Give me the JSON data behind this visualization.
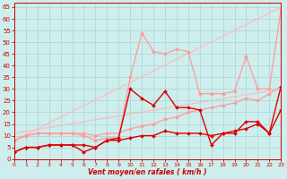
{
  "xlabel": "Vent moyen/en rafales ( km/h )",
  "bg_color": "#ceeeed",
  "grid_color": "#aad4d4",
  "yticks": [
    0,
    5,
    10,
    15,
    20,
    25,
    30,
    35,
    40,
    45,
    50,
    55,
    60,
    65
  ],
  "xticks": [
    0,
    1,
    2,
    3,
    4,
    5,
    6,
    7,
    8,
    9,
    10,
    11,
    12,
    13,
    14,
    15,
    16,
    17,
    18,
    19,
    20,
    21,
    22,
    23
  ],
  "xlim": [
    0,
    23
  ],
  "ylim": [
    0,
    67
  ],
  "lines": [
    {
      "x": [
        0,
        23
      ],
      "y": [
        8,
        65
      ],
      "color": "#ffbbbb",
      "lw": 0.9,
      "marker": null,
      "ms": 0,
      "zorder": 1
    },
    {
      "x": [
        0,
        23
      ],
      "y": [
        11,
        30
      ],
      "color": "#ffbbbb",
      "lw": 0.9,
      "marker": null,
      "ms": 0,
      "zorder": 1
    },
    {
      "x": [
        0,
        1,
        2,
        3,
        4,
        5,
        6,
        7,
        8,
        9,
        10,
        11,
        12,
        13,
        14,
        15,
        16,
        17,
        18,
        19,
        20,
        21,
        22,
        23
      ],
      "y": [
        8,
        10,
        11,
        11,
        11,
        11,
        10,
        8,
        9,
        9,
        35,
        54,
        46,
        45,
        47,
        46,
        28,
        28,
        28,
        29,
        44,
        30,
        30,
        64
      ],
      "color": "#ff9999",
      "lw": 0.9,
      "marker": "D",
      "ms": 2.0,
      "zorder": 2
    },
    {
      "x": [
        0,
        1,
        2,
        3,
        4,
        5,
        6,
        7,
        8,
        9,
        10,
        11,
        12,
        13,
        14,
        15,
        16,
        17,
        18,
        19,
        20,
        21,
        22,
        23
      ],
      "y": [
        8,
        10,
        11,
        11,
        11,
        11,
        11,
        10,
        11,
        11,
        13,
        14,
        15,
        17,
        18,
        20,
        21,
        22,
        23,
        24,
        26,
        25,
        28,
        31
      ],
      "color": "#ff9999",
      "lw": 0.9,
      "marker": "D",
      "ms": 2.0,
      "zorder": 2
    },
    {
      "x": [
        0,
        1,
        2,
        3,
        4,
        5,
        6,
        7,
        8,
        9,
        10,
        11,
        12,
        13,
        14,
        15,
        16,
        17,
        18,
        19,
        20,
        21,
        22,
        23
      ],
      "y": [
        3,
        5,
        5,
        6,
        6,
        6,
        3,
        5,
        8,
        9,
        30,
        26,
        23,
        29,
        22,
        22,
        21,
        6,
        11,
        11,
        16,
        16,
        11,
        31
      ],
      "color": "#dd0000",
      "lw": 1.0,
      "marker": "D",
      "ms": 2.0,
      "zorder": 3
    },
    {
      "x": [
        0,
        1,
        2,
        3,
        4,
        5,
        6,
        7,
        8,
        9,
        10,
        11,
        12,
        13,
        14,
        15,
        16,
        17,
        18,
        19,
        20,
        21,
        22,
        23
      ],
      "y": [
        3,
        5,
        5,
        6,
        6,
        6,
        6,
        5,
        8,
        8,
        9,
        10,
        10,
        12,
        11,
        11,
        11,
        10,
        11,
        12,
        13,
        15,
        11,
        21
      ],
      "color": "#dd0000",
      "lw": 1.0,
      "marker": "D",
      "ms": 2.0,
      "zorder": 3
    }
  ]
}
